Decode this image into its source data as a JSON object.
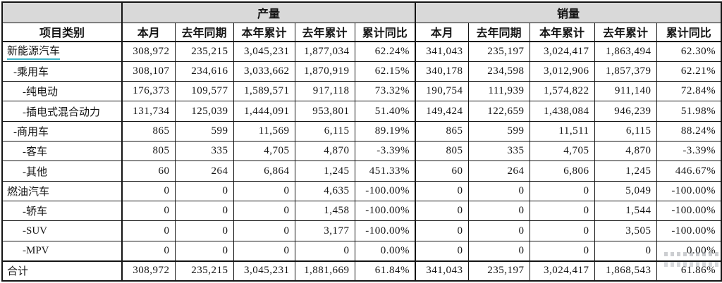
{
  "table": {
    "category_header": "项目类别",
    "groups": [
      {
        "label": "产量"
      },
      {
        "label": "销量"
      }
    ],
    "sub_headers": [
      "本月",
      "去年同期",
      "本年累计",
      "去年累计",
      "累计同比"
    ],
    "rows": [
      {
        "label": "新能源汽车",
        "indent": 0,
        "underlined": true,
        "production": [
          "308,972",
          "235,215",
          "3,045,231",
          "1,877,034",
          "62.24%"
        ],
        "sales": [
          "341,043",
          "235,197",
          "3,024,417",
          "1,863,494",
          "62.30%"
        ]
      },
      {
        "label": "-乘用车",
        "indent": 1,
        "production": [
          "308,107",
          "234,616",
          "3,033,662",
          "1,870,919",
          "62.15%"
        ],
        "sales": [
          "340,178",
          "234,598",
          "3,012,906",
          "1,857,379",
          "62.21%"
        ]
      },
      {
        "label": "-纯电动",
        "indent": 2,
        "production": [
          "176,373",
          "109,577",
          "1,589,571",
          "917,118",
          "73.32%"
        ],
        "sales": [
          "190,754",
          "111,939",
          "1,574,822",
          "911,140",
          "72.84%"
        ]
      },
      {
        "label": "-插电式混合动力",
        "indent": 2,
        "production": [
          "131,734",
          "125,039",
          "1,444,091",
          "953,801",
          "51.40%"
        ],
        "sales": [
          "149,424",
          "122,659",
          "1,438,084",
          "946,239",
          "51.98%"
        ]
      },
      {
        "label": "-商用车",
        "indent": 1,
        "production": [
          "865",
          "599",
          "11,569",
          "6,115",
          "89.19%"
        ],
        "sales": [
          "865",
          "599",
          "11,511",
          "6,115",
          "88.24%"
        ]
      },
      {
        "label": "-客车",
        "indent": 2,
        "production": [
          "805",
          "335",
          "4,705",
          "4,870",
          "-3.39%"
        ],
        "sales": [
          "805",
          "335",
          "4,705",
          "4,870",
          "-3.39%"
        ]
      },
      {
        "label": "-其他",
        "indent": 2,
        "production": [
          "60",
          "264",
          "6,864",
          "1,245",
          "451.33%"
        ],
        "sales": [
          "60",
          "264",
          "6,806",
          "1,245",
          "446.67%"
        ]
      },
      {
        "label": "燃油汽车",
        "indent": 0,
        "production": [
          "0",
          "0",
          "0",
          "4,635",
          "-100.00%"
        ],
        "sales": [
          "0",
          "0",
          "0",
          "5,049",
          "-100.00%"
        ]
      },
      {
        "label": "-轿车",
        "indent": 2,
        "production": [
          "0",
          "0",
          "0",
          "1,458",
          "-100.00%"
        ],
        "sales": [
          "0",
          "0",
          "0",
          "1,544",
          "-100.00%"
        ]
      },
      {
        "label": "-SUV",
        "indent": 2,
        "production": [
          "0",
          "0",
          "0",
          "3,177",
          "-100.00%"
        ],
        "sales": [
          "0",
          "0",
          "0",
          "3,505",
          "-100.00%"
        ]
      },
      {
        "label": "-MPV",
        "indent": 2,
        "production": [
          "0",
          "0",
          "0",
          "0",
          "0.00%"
        ],
        "sales": [
          "0",
          "0",
          "0",
          "0",
          "0.00%"
        ]
      },
      {
        "label": "合计",
        "indent": 0,
        "total": true,
        "production": [
          "308,972",
          "235,215",
          "3,045,231",
          "1,881,669",
          "61.84%"
        ],
        "sales": [
          "341,043",
          "235,197",
          "3,024,417",
          "1,868,543",
          "61.86%"
        ]
      }
    ]
  },
  "colors": {
    "header_bg": "#d9d9d9",
    "border": "#141414",
    "link_underline": "#3fb6c9",
    "text": "#141414"
  }
}
